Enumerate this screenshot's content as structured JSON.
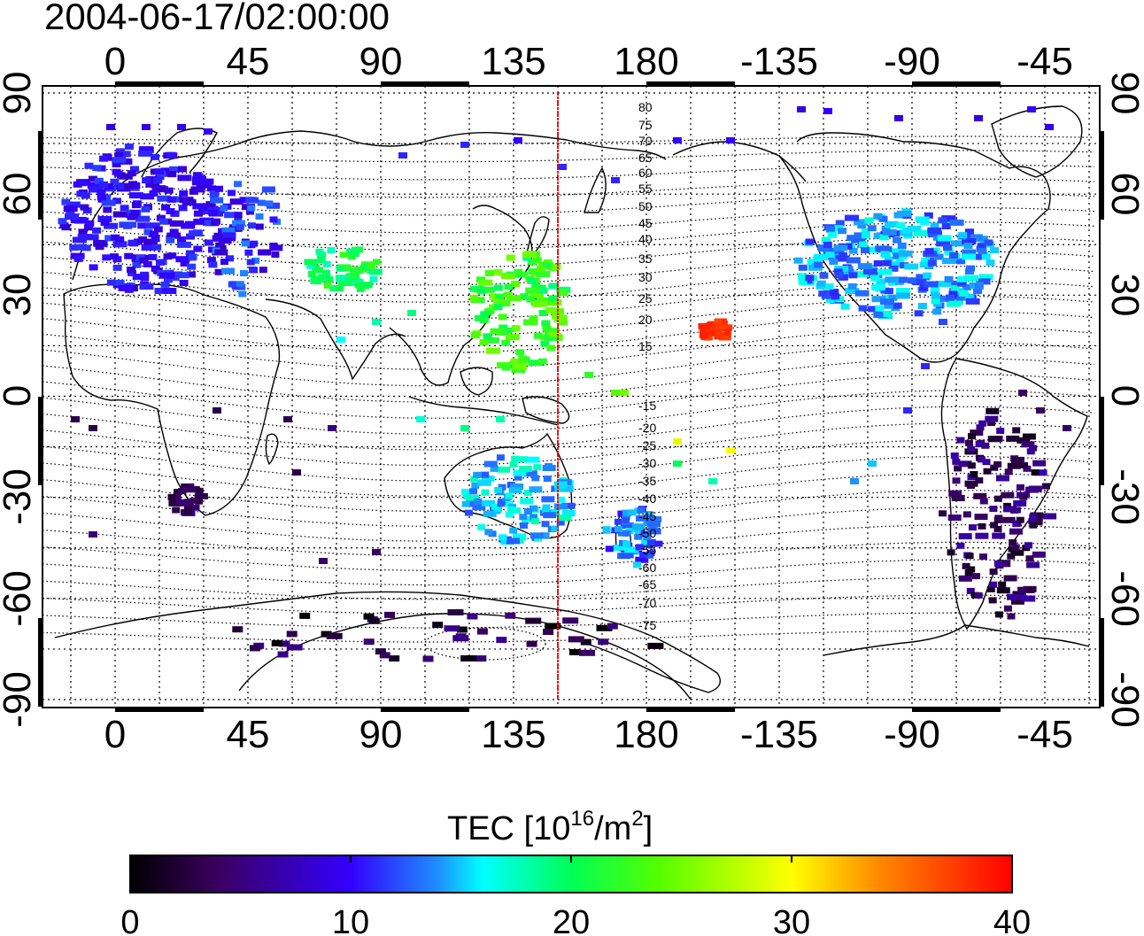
{
  "title": "2004-06-17/02:00:00",
  "lon_ticks": [
    "0",
    "45",
    "90",
    "135",
    "180",
    "-135",
    "-90",
    "-45"
  ],
  "lat_ticks": [
    "90",
    "60",
    "30",
    "0",
    "-30",
    "-60",
    "-90"
  ],
  "contour_labels": [
    "80",
    "75",
    "70",
    "65",
    "60",
    "55",
    "50",
    "45",
    "40",
    "35",
    "30",
    "25",
    "20",
    "15",
    "-15",
    "-20",
    "-25",
    "-30",
    "-35",
    "-40",
    "-45",
    "-50",
    "-55",
    "-60",
    "-65",
    "-70",
    "-75"
  ],
  "meridian_marker_lon": 150,
  "colorbar": {
    "label_main": "TEC  [10",
    "label_sup1": "16",
    "label_mid": "/m",
    "label_sup2": "2",
    "label_end": "]",
    "tick_labels": [
      "0",
      "10",
      "20",
      "30",
      "40"
    ],
    "range": [
      0,
      40
    ],
    "colors": [
      "#000000",
      "#3a0060",
      "#3300ff",
      "#1e90ff",
      "#00ffff",
      "#00ff55",
      "#55ff00",
      "#ffff00",
      "#ff8800",
      "#ff0000"
    ]
  },
  "tec_clusters": [
    {
      "region": "europe",
      "value": 10
    },
    {
      "region": "western-russia",
      "value": 11
    },
    {
      "region": "north-america",
      "value": 14
    },
    {
      "region": "east-asia",
      "value": 22
    },
    {
      "region": "central-asia",
      "value": 20
    },
    {
      "region": "australia",
      "value": 15
    },
    {
      "region": "new-zealand",
      "value": 13
    },
    {
      "region": "hawaii",
      "value": 38
    },
    {
      "region": "south-america",
      "value": 4
    },
    {
      "region": "south-africa",
      "value": 4
    },
    {
      "region": "antarctica",
      "value": 2
    }
  ]
}
